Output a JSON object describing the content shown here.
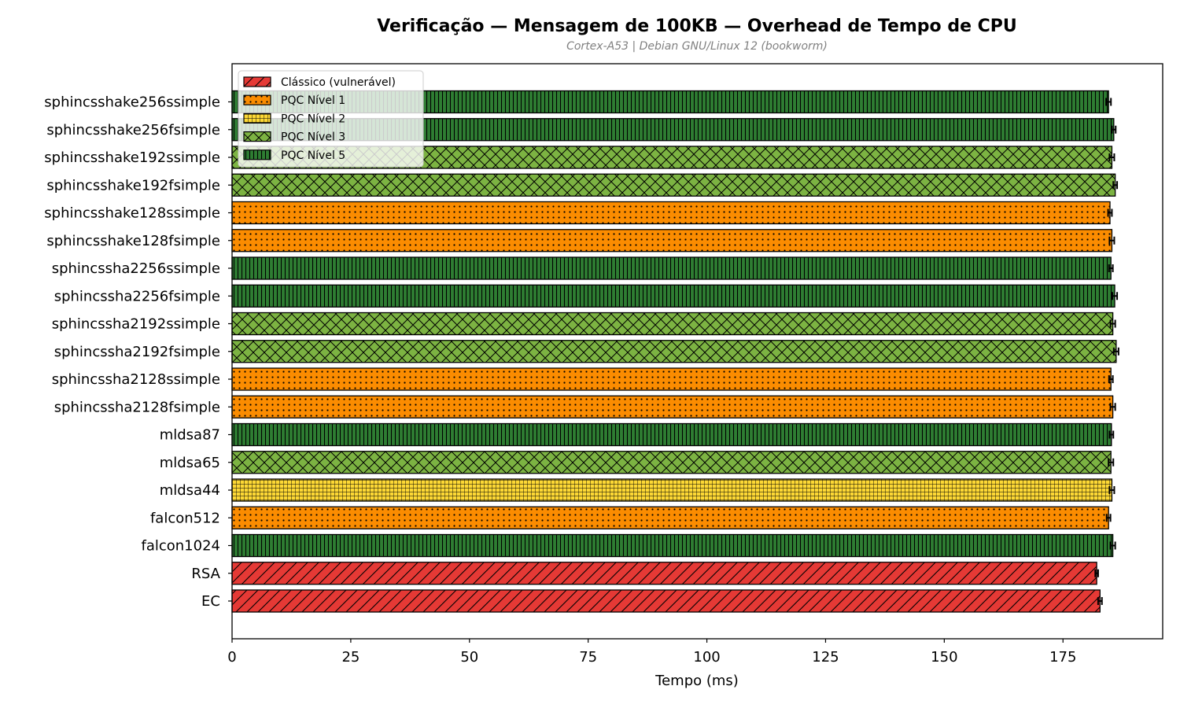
{
  "chart_data": {
    "type": "bar",
    "orientation": "horizontal",
    "title": "Verificação — Mensagem de 100KB — Overhead de Tempo de CPU",
    "subtitle": "Cortex-A53 | Debian GNU/Linux 12 (bookworm)",
    "xlabel": "Tempo (ms)",
    "ylabel": "",
    "xlim": [
      0,
      196
    ],
    "xticks": [
      0,
      25,
      50,
      75,
      100,
      125,
      150,
      175
    ],
    "grid": false,
    "legend_position": "top-left",
    "categories": [
      {
        "name": "sphincsshake256ssimple",
        "value": 184.6,
        "error": 0.5,
        "group": "l5"
      },
      {
        "name": "sphincsshake256fsimple",
        "value": 185.7,
        "error": 0.4,
        "group": "l5"
      },
      {
        "name": "sphincsshake192ssimple",
        "value": 185.3,
        "error": 0.5,
        "group": "l3"
      },
      {
        "name": "sphincsshake192fsimple",
        "value": 186.0,
        "error": 0.4,
        "group": "l3"
      },
      {
        "name": "sphincsshake128ssimple",
        "value": 184.9,
        "error": 0.4,
        "group": "l1"
      },
      {
        "name": "sphincsshake128fsimple",
        "value": 185.3,
        "error": 0.5,
        "group": "l1"
      },
      {
        "name": "sphincssha2256ssimple",
        "value": 185.1,
        "error": 0.4,
        "group": "l5"
      },
      {
        "name": "sphincssha2256fsimple",
        "value": 185.9,
        "error": 0.5,
        "group": "l5"
      },
      {
        "name": "sphincssha2192ssimple",
        "value": 185.5,
        "error": 0.5,
        "group": "l3"
      },
      {
        "name": "sphincssha2192fsimple",
        "value": 186.2,
        "error": 0.5,
        "group": "l3"
      },
      {
        "name": "sphincssha2128ssimple",
        "value": 185.1,
        "error": 0.4,
        "group": "l1"
      },
      {
        "name": "sphincssha2128fsimple",
        "value": 185.5,
        "error": 0.5,
        "group": "l1"
      },
      {
        "name": "mldsa87",
        "value": 185.2,
        "error": 0.4,
        "group": "l5"
      },
      {
        "name": "mldsa65",
        "value": 185.1,
        "error": 0.5,
        "group": "l3"
      },
      {
        "name": "mldsa44",
        "value": 185.3,
        "error": 0.5,
        "group": "l2"
      },
      {
        "name": "falcon512",
        "value": 184.6,
        "error": 0.4,
        "group": "l1"
      },
      {
        "name": "falcon1024",
        "value": 185.5,
        "error": 0.5,
        "group": "l5"
      },
      {
        "name": "RSA",
        "value": 182.1,
        "error": 0.3,
        "group": "classic"
      },
      {
        "name": "EC",
        "value": 182.8,
        "error": 0.4,
        "group": "classic"
      }
    ],
    "legend": [
      {
        "key": "classic",
        "label": "Clássico (vulnerável)"
      },
      {
        "key": "l1",
        "label": "PQC Nível 1"
      },
      {
        "key": "l2",
        "label": "PQC Nível 2"
      },
      {
        "key": "l3",
        "label": "PQC Nível 3"
      },
      {
        "key": "l5",
        "label": "PQC Nível 5"
      }
    ],
    "group_colors": {
      "classic": "#e53935",
      "l1": "#fb8c00",
      "l2": "#fdd835",
      "l3": "#7cb342",
      "l5": "#2e7d32"
    },
    "group_hatch": {
      "classic": "diagonal",
      "l1": "dots",
      "l2": "grid",
      "l3": "crosshatch",
      "l5": "vertical"
    }
  }
}
